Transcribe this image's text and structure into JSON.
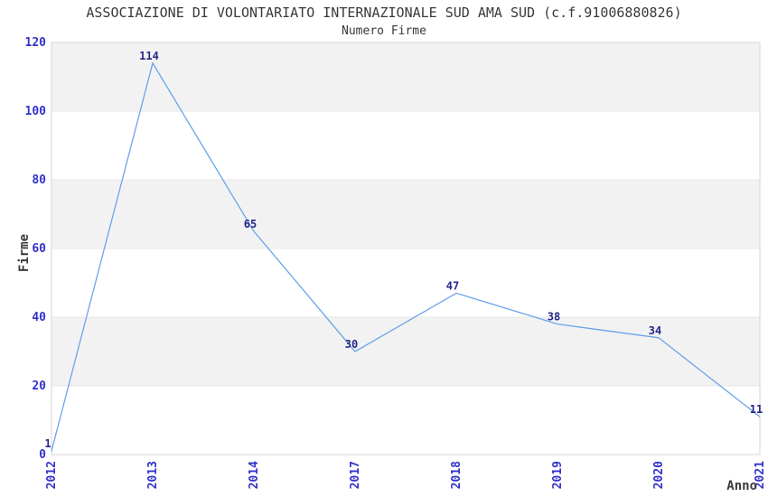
{
  "chart_data": {
    "type": "line",
    "title": "ASSOCIAZIONE DI VOLONTARIATO INTERNAZIONALE SUD AMA SUD (c.f.91006880826)",
    "subtitle": "Numero Firme",
    "xlabel": "Anno",
    "ylabel": "Firme",
    "categories": [
      "2012",
      "2013",
      "2014",
      "2017",
      "2018",
      "2019",
      "2020",
      "2021"
    ],
    "values": [
      1,
      114,
      65,
      30,
      47,
      38,
      34,
      11
    ],
    "ylim": [
      0,
      120
    ],
    "ytick_step": 20,
    "yticks": [
      0,
      20,
      40,
      60,
      80,
      100,
      120
    ],
    "grid": "horizontal-bands-alternating",
    "legend": "none",
    "x_tick_rotation": 90,
    "data_labels_visible": true,
    "colors": {
      "line": "#6BA4E9",
      "tick_label": "#3333CC",
      "data_label": "#262688",
      "band_fill": "#F2F2F2",
      "grid_line": "#E8E8E8",
      "plot_border": "#D6D6D6",
      "text": "#3A3A3A"
    }
  }
}
